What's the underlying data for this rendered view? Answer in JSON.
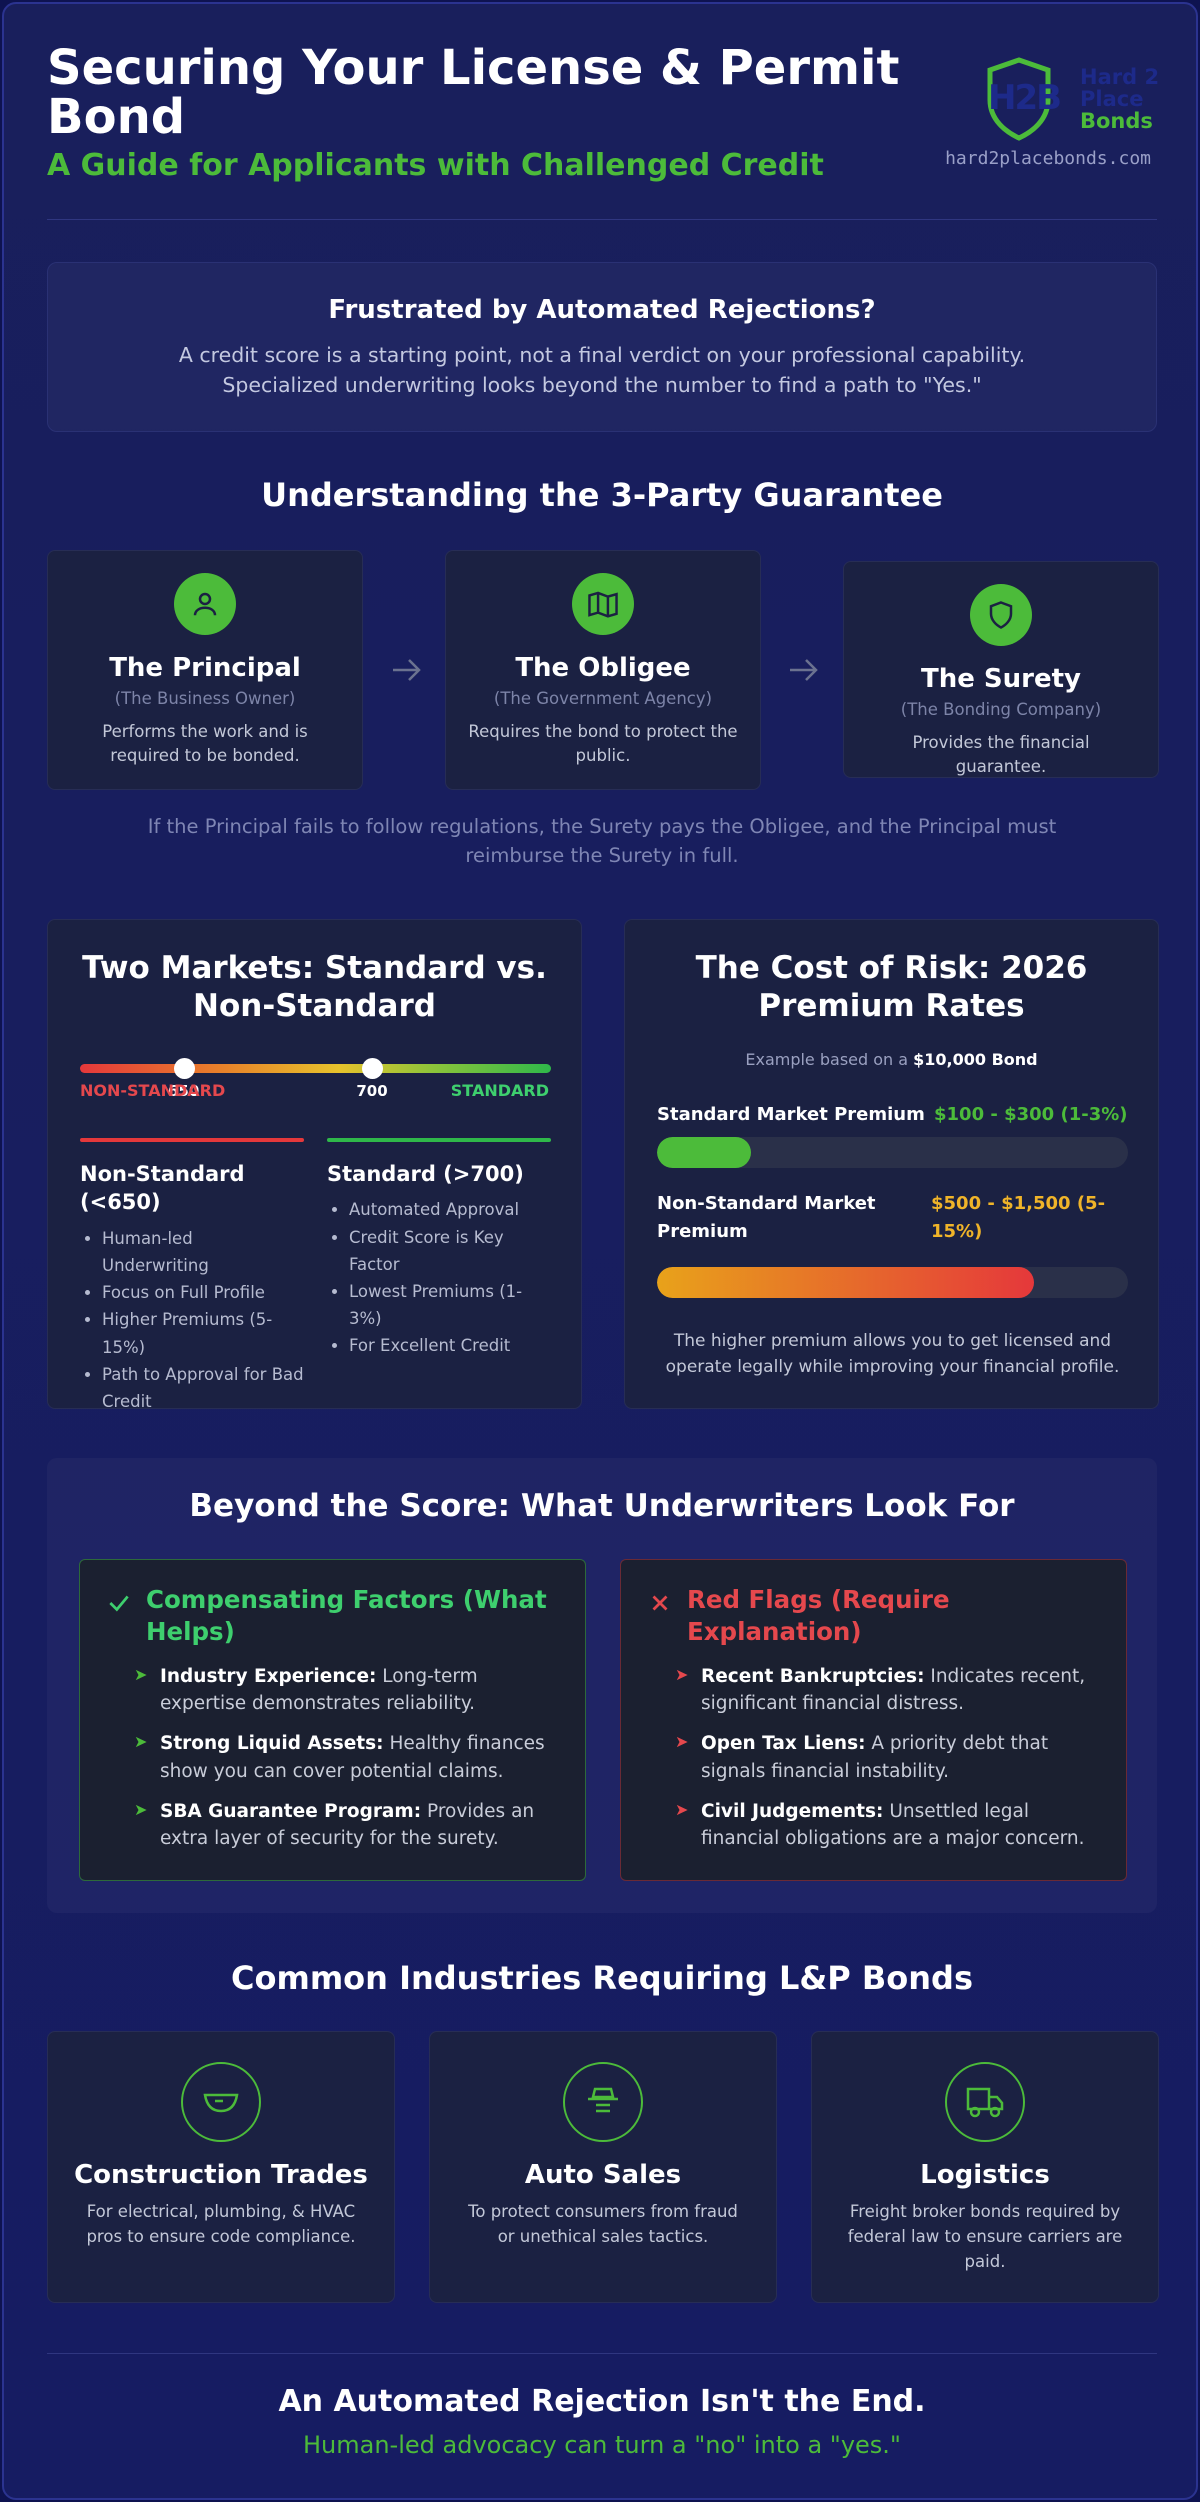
{
  "header": {
    "title": "Securing Your License & Permit Bond",
    "subtitle": "A Guide for Applicants with Challenged Credit",
    "logo": {
      "monogram": "H2B",
      "line1": "Hard 2",
      "line2": "Place",
      "line3": "Bonds"
    },
    "url": "hard2placebonds.com"
  },
  "intro": {
    "title": "Frustrated by Automated Rejections?",
    "text": "A credit score is a starting point, not a final verdict on your professional capability. Specialized underwriting looks beyond the number to find a path to \"Yes.\""
  },
  "parties": {
    "title": "Understanding the 3-Party Guarantee",
    "items": [
      {
        "name": "The Principal",
        "role": "(The Business Owner)",
        "description": "Performs the work and is required to be bonded."
      },
      {
        "name": "The Obligee",
        "role": "(The Government Agency)",
        "description": "Requires the bond to protect the public."
      },
      {
        "name": "The Surety",
        "role": "(The Bonding Company)",
        "description": "Provides the financial guarantee."
      }
    ],
    "note": "If the Principal fails to follow regulations, the Surety pays the Obligee, and the Principal must reimburse the Surety in full."
  },
  "markets": {
    "title": "Two Markets: Standard vs. Non-Standard",
    "scale": {
      "markers": [
        650,
        700
      ],
      "low_label": "NON-STANDARD",
      "high_label": "STANDARD"
    },
    "columns": [
      {
        "title": "Non-Standard (<650)",
        "items": [
          "Human-led Underwriting",
          "Focus on Full Profile",
          "Higher Premiums (5-15%)",
          "Path to Approval for Bad Credit"
        ]
      },
      {
        "title": "Standard (>700)",
        "items": [
          "Automated Approval",
          "Credit Score is Key Factor",
          "Lowest Premiums (1-3%)",
          "For Excellent Credit"
        ]
      }
    ]
  },
  "cost": {
    "title": "The Cost of Risk: 2026 Premium Rates",
    "example_prefix": "Example based on a",
    "example_amount": "$10,000 Bond",
    "bars": [
      {
        "label": "Standard Market Premium",
        "range": "$100 - $300 (1-3%)"
      },
      {
        "label": "Non-Standard Market Premium",
        "range": "$500 - $1,500 (5-15%)"
      }
    ],
    "note": "The higher premium allows you to get licensed and operate legally while improving your financial profile."
  },
  "factors": {
    "title": "Beyond the Score: What Underwriters Look For",
    "panels": [
      {
        "title": "Compensating Factors (What Helps)",
        "items": [
          {
            "term": "Industry Experience:",
            "text": "Long-term expertise demonstrates reliability."
          },
          {
            "term": "Strong Liquid Assets:",
            "text": "Healthy finances show you can cover potential claims."
          },
          {
            "term": "SBA Guarantee Program:",
            "text": "Provides an extra layer of security for the surety."
          }
        ]
      },
      {
        "title": "Red Flags (Require Explanation)",
        "items": [
          {
            "term": "Recent Bankruptcies:",
            "text": "Indicates recent, significant financial distress."
          },
          {
            "term": "Open Tax Liens:",
            "text": "A priority debt that signals financial instability."
          },
          {
            "term": "Civil Judgements:",
            "text": "Unsettled legal financial obligations are a major concern."
          }
        ]
      }
    ]
  },
  "industries": {
    "title": "Common Industries Requiring L&P Bonds",
    "items": [
      {
        "name": "Construction Trades",
        "description": "For electrical, plumbing, & HVAC pros to ensure code compliance."
      },
      {
        "name": "Auto Sales",
        "description": "To protect consumers from fraud or unethical sales tactics."
      },
      {
        "name": "Logistics",
        "description": "Freight broker bonds required by federal law to ensure carriers are paid."
      }
    ]
  },
  "footer": {
    "title": "An Automated Rejection Isn't the End.",
    "subtitle": "Human-led advocacy can turn a \"no\" into a \"yes.\""
  }
}
